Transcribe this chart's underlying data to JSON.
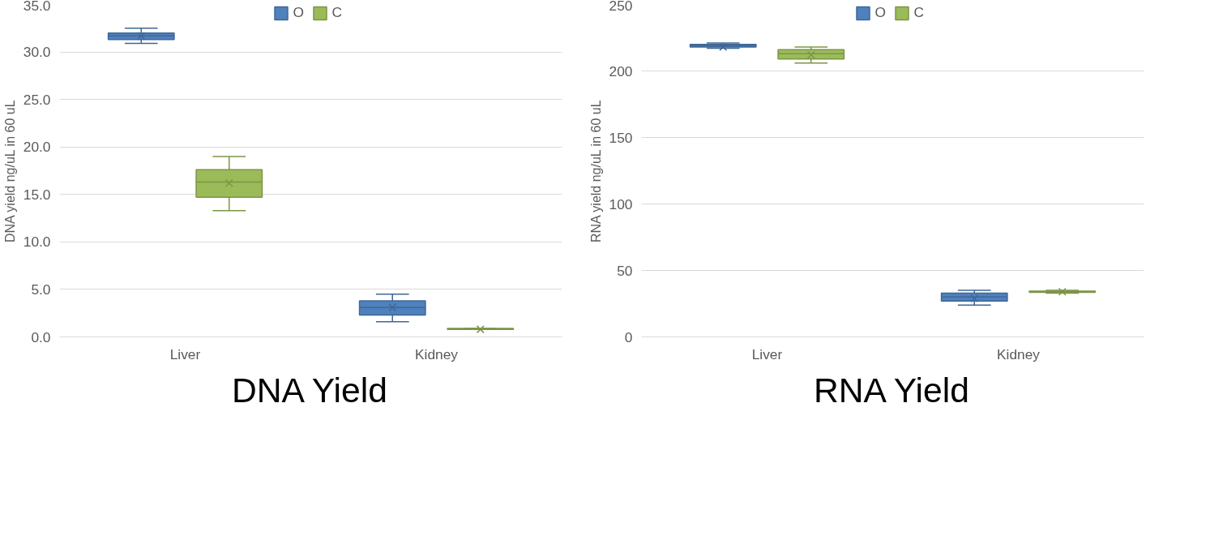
{
  "chart_data": [
    {
      "type": "box",
      "title": "DNA Yield",
      "ylabel": "DNA yield ng/uL in 60 uL",
      "categories": [
        "Liver",
        "Kidney"
      ],
      "ylim": [
        0,
        35
      ],
      "yticks": [
        {
          "value": 0,
          "label": "0.0"
        },
        {
          "value": 5,
          "label": "5.0"
        },
        {
          "value": 10,
          "label": "10.0"
        },
        {
          "value": 15,
          "label": "15.0"
        },
        {
          "value": 20,
          "label": "20.0"
        },
        {
          "value": 25,
          "label": "25.0"
        },
        {
          "value": 30,
          "label": "30.0"
        },
        {
          "value": 35,
          "label": "35.0"
        }
      ],
      "grid": "y",
      "legend": "top",
      "series": [
        {
          "name": "O",
          "color": "#4f81bd",
          "boxes": [
            {
              "low": 30.9,
              "q1": 31.3,
              "median": 31.7,
              "q3": 32.0,
              "high": 32.5,
              "mean": 31.7
            },
            {
              "low": 1.6,
              "q1": 2.3,
              "median": 3.1,
              "q3": 3.8,
              "high": 4.5,
              "mean": 3.1
            }
          ]
        },
        {
          "name": "C",
          "color": "#9bbb59",
          "boxes": [
            {
              "low": 13.3,
              "q1": 14.7,
              "median": 16.3,
              "q3": 17.6,
              "high": 19.0,
              "mean": 16.2
            },
            {
              "low": 0.8,
              "q1": 0.8,
              "median": 0.8,
              "q3": 0.9,
              "high": 0.9,
              "mean": 0.8
            }
          ]
        }
      ]
    },
    {
      "type": "box",
      "title": "RNA Yield",
      "ylabel": "RNA yield ng/uL in 60 uL",
      "categories": [
        "Liver",
        "Kidney"
      ],
      "ylim": [
        0,
        250
      ],
      "yticks": [
        0,
        50,
        100,
        150,
        200,
        250
      ],
      "grid": "y",
      "legend": "top",
      "series": [
        {
          "name": "O",
          "color": "#4f81bd",
          "boxes": [
            {
              "low": 217,
              "q1": 218,
              "median": 219,
              "q3": 220,
              "high": 221,
              "mean": 218
            },
            {
              "low": 24,
              "q1": 27,
              "median": 30,
              "q3": 33,
              "high": 35,
              "mean": 29
            }
          ]
        },
        {
          "name": "C",
          "color": "#9bbb59",
          "boxes": [
            {
              "low": 206,
              "q1": 209,
              "median": 213,
              "q3": 216,
              "high": 218,
              "mean": 212
            },
            {
              "low": 33,
              "q1": 33.5,
              "median": 34,
              "q3": 34.5,
              "high": 35,
              "mean": 34
            }
          ]
        }
      ]
    }
  ]
}
